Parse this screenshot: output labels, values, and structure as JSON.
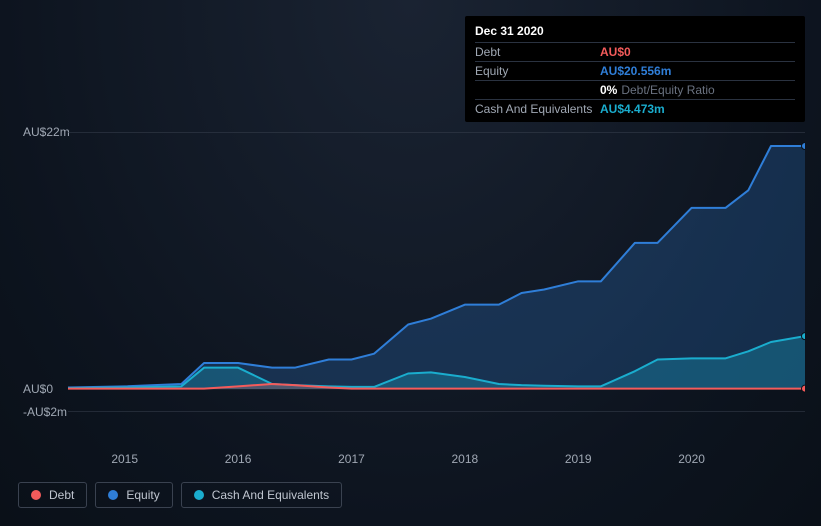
{
  "tooltip": {
    "date": "Dec 31 2020",
    "rows": [
      {
        "label": "Debt",
        "value": "AU$0",
        "cls": "debt"
      },
      {
        "label": "Equity",
        "value": "AU$20.556m",
        "cls": "equity"
      },
      {
        "label": "",
        "value_num": "0%",
        "value_lbl": "Debt/Equity Ratio",
        "ratio": true
      },
      {
        "label": "Cash And Equivalents",
        "value": "AU$4.473m",
        "cls": "cash"
      }
    ]
  },
  "chart": {
    "type": "area",
    "background": "transparent",
    "ylim": [
      -2,
      22
    ],
    "yticks": [
      {
        "v": 22,
        "label": "AU$22m"
      },
      {
        "v": 0,
        "label": "AU$0"
      },
      {
        "v": -2,
        "label": "-AU$2m"
      }
    ],
    "xlim": [
      2014.5,
      2021.0
    ],
    "xticks": [
      2015,
      2016,
      2017,
      2018,
      2019,
      2020
    ],
    "gridline_color": "#3a4250",
    "series": [
      {
        "name": "Equity",
        "color": "#2f7ed8",
        "fill": "rgba(47,126,216,0.25)",
        "data": [
          [
            2014.5,
            0.1
          ],
          [
            2015.0,
            0.2
          ],
          [
            2015.5,
            0.4
          ],
          [
            2015.7,
            2.2
          ],
          [
            2016.0,
            2.2
          ],
          [
            2016.3,
            1.8
          ],
          [
            2016.5,
            1.8
          ],
          [
            2016.8,
            2.5
          ],
          [
            2017.0,
            2.5
          ],
          [
            2017.2,
            3.0
          ],
          [
            2017.5,
            5.5
          ],
          [
            2017.7,
            6.0
          ],
          [
            2018.0,
            7.2
          ],
          [
            2018.3,
            7.2
          ],
          [
            2018.5,
            8.2
          ],
          [
            2018.7,
            8.5
          ],
          [
            2019.0,
            9.2
          ],
          [
            2019.2,
            9.2
          ],
          [
            2019.5,
            12.5
          ],
          [
            2019.7,
            12.5
          ],
          [
            2020.0,
            15.5
          ],
          [
            2020.3,
            15.5
          ],
          [
            2020.5,
            17.0
          ],
          [
            2020.7,
            20.8
          ],
          [
            2021.0,
            20.8
          ]
        ]
      },
      {
        "name": "Cash And Equivalents",
        "color": "#1aadce",
        "fill": "rgba(26,173,206,0.30)",
        "data": [
          [
            2014.5,
            0.05
          ],
          [
            2015.0,
            0.1
          ],
          [
            2015.5,
            0.2
          ],
          [
            2015.7,
            1.8
          ],
          [
            2016.0,
            1.8
          ],
          [
            2016.3,
            0.4
          ],
          [
            2016.5,
            0.3
          ],
          [
            2016.8,
            0.2
          ],
          [
            2017.0,
            0.15
          ],
          [
            2017.2,
            0.15
          ],
          [
            2017.5,
            1.3
          ],
          [
            2017.7,
            1.4
          ],
          [
            2018.0,
            1.0
          ],
          [
            2018.3,
            0.4
          ],
          [
            2018.5,
            0.3
          ],
          [
            2018.7,
            0.25
          ],
          [
            2019.0,
            0.2
          ],
          [
            2019.2,
            0.2
          ],
          [
            2019.5,
            1.5
          ],
          [
            2019.7,
            2.5
          ],
          [
            2020.0,
            2.6
          ],
          [
            2020.3,
            2.6
          ],
          [
            2020.5,
            3.2
          ],
          [
            2020.7,
            4.0
          ],
          [
            2021.0,
            4.5
          ]
        ]
      },
      {
        "name": "Debt",
        "color": "#f45b5b",
        "fill": "rgba(244,91,91,0.25)",
        "data": [
          [
            2014.5,
            0
          ],
          [
            2015.0,
            0
          ],
          [
            2015.5,
            0
          ],
          [
            2015.7,
            0
          ],
          [
            2016.0,
            0.2
          ],
          [
            2016.3,
            0.4
          ],
          [
            2016.5,
            0.3
          ],
          [
            2016.8,
            0.1
          ],
          [
            2017.0,
            0
          ],
          [
            2017.5,
            0
          ],
          [
            2018.0,
            0
          ],
          [
            2018.5,
            0
          ],
          [
            2019.0,
            0
          ],
          [
            2019.5,
            0
          ],
          [
            2020.0,
            0
          ],
          [
            2020.5,
            0
          ],
          [
            2021.0,
            0
          ]
        ]
      }
    ],
    "line_width": 2,
    "end_markers": true,
    "marker_radius": 3.5
  },
  "legend": [
    {
      "label": "Debt",
      "color": "#f45b5b"
    },
    {
      "label": "Equity",
      "color": "#2f7ed8"
    },
    {
      "label": "Cash And Equivalents",
      "color": "#1aadce"
    }
  ]
}
